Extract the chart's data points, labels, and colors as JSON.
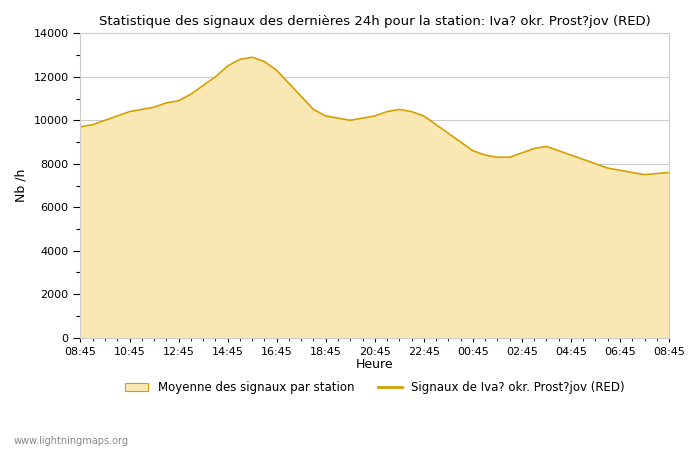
{
  "title": "Statistique des signaux des dernières 24h pour la station: Iva? okr. Prost?jov (RED)",
  "ylabel": "Nb /h",
  "xlabel": "Heure",
  "ylim": [
    0,
    14000
  ],
  "yticks": [
    0,
    2000,
    4000,
    6000,
    8000,
    10000,
    12000,
    14000
  ],
  "xtick_labels": [
    "08:45",
    "10:45",
    "12:45",
    "14:45",
    "16:45",
    "18:45",
    "20:45",
    "22:45",
    "00:45",
    "02:45",
    "04:45",
    "06:45",
    "08:45"
  ],
  "fill_color": "#FAE8B4",
  "line_color": "#D4A000",
  "bg_color": "#FFFFFF",
  "grid_color": "#CCCCCC",
  "watermark": "www.lightningmaps.org",
  "legend_fill_label": "Moyenne des signaux par station",
  "legend_line_label": "Signaux de Iva? okr. Prost?jov (RED)",
  "x_values": [
    0,
    1,
    2,
    3,
    4,
    5,
    6,
    7,
    8,
    9,
    10,
    11,
    12,
    13,
    14,
    15,
    16,
    17,
    18,
    19,
    20,
    21,
    22,
    23,
    24,
    25,
    26,
    27,
    28,
    29,
    30,
    31,
    32,
    33,
    34,
    35,
    36,
    37,
    38,
    39,
    40,
    41,
    42,
    43,
    44,
    45,
    46,
    47,
    48
  ],
  "y_fill": [
    9700,
    9800,
    10000,
    10200,
    10400,
    10500,
    10600,
    10800,
    10900,
    11200,
    11600,
    12000,
    12500,
    12800,
    12900,
    12700,
    12300,
    11700,
    11100,
    10500,
    10200,
    10100,
    10000,
    10100,
    10200,
    10400,
    10500,
    10400,
    10200,
    9800,
    9400,
    9000,
    8600,
    8400,
    8300,
    8300,
    8500,
    8700,
    8800,
    8600,
    8400,
    8200,
    8000,
    7800,
    7700,
    7600,
    7500,
    7550,
    7600
  ]
}
